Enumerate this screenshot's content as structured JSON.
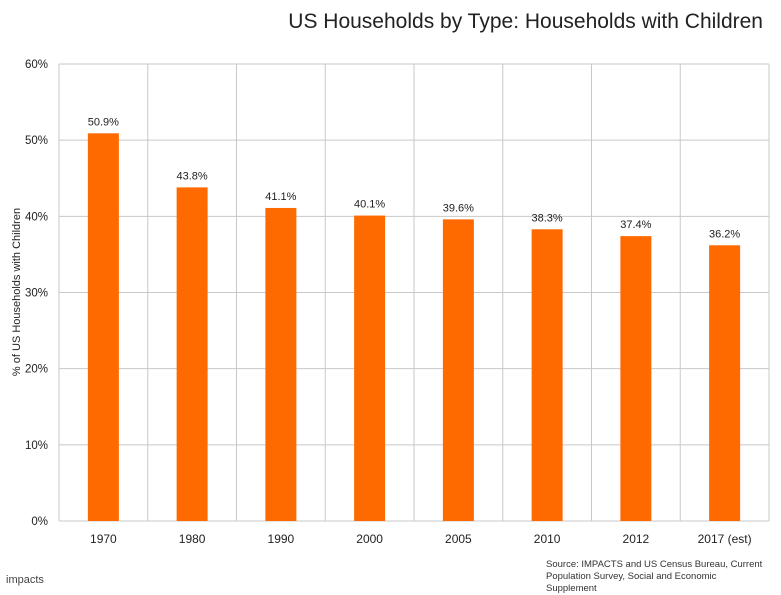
{
  "title": "US Households by Type: Households with Children",
  "source_text": "Source: IMPACTS and US Census Bureau, Current Population Survey, Social and Economic Supplement",
  "logo_text": "impacts",
  "colors": {
    "bar": "#ff6a00",
    "grid": "#c8c8c8",
    "text": "#222222"
  },
  "chart_data": {
    "type": "bar",
    "categories": [
      "1970",
      "1980",
      "1990",
      "2000",
      "2005",
      "2010",
      "2012",
      "2017 (est)"
    ],
    "values": [
      50.9,
      43.8,
      41.1,
      40.1,
      39.6,
      38.3,
      37.4,
      36.2
    ],
    "value_labels": [
      "50.9%",
      "43.8%",
      "41.1%",
      "40.1%",
      "39.6%",
      "38.3%",
      "37.4%",
      "36.2%"
    ],
    "title": "US Households by Type: Households with Children",
    "xlabel": "",
    "ylabel": "% of US Households with Children",
    "ylim": [
      0,
      60
    ],
    "yticks": [
      0,
      10,
      20,
      30,
      40,
      50,
      60
    ],
    "ytick_labels": [
      "0%",
      "10%",
      "20%",
      "30%",
      "40%",
      "50%",
      "60%"
    ],
    "grid": true,
    "legend": "none"
  }
}
